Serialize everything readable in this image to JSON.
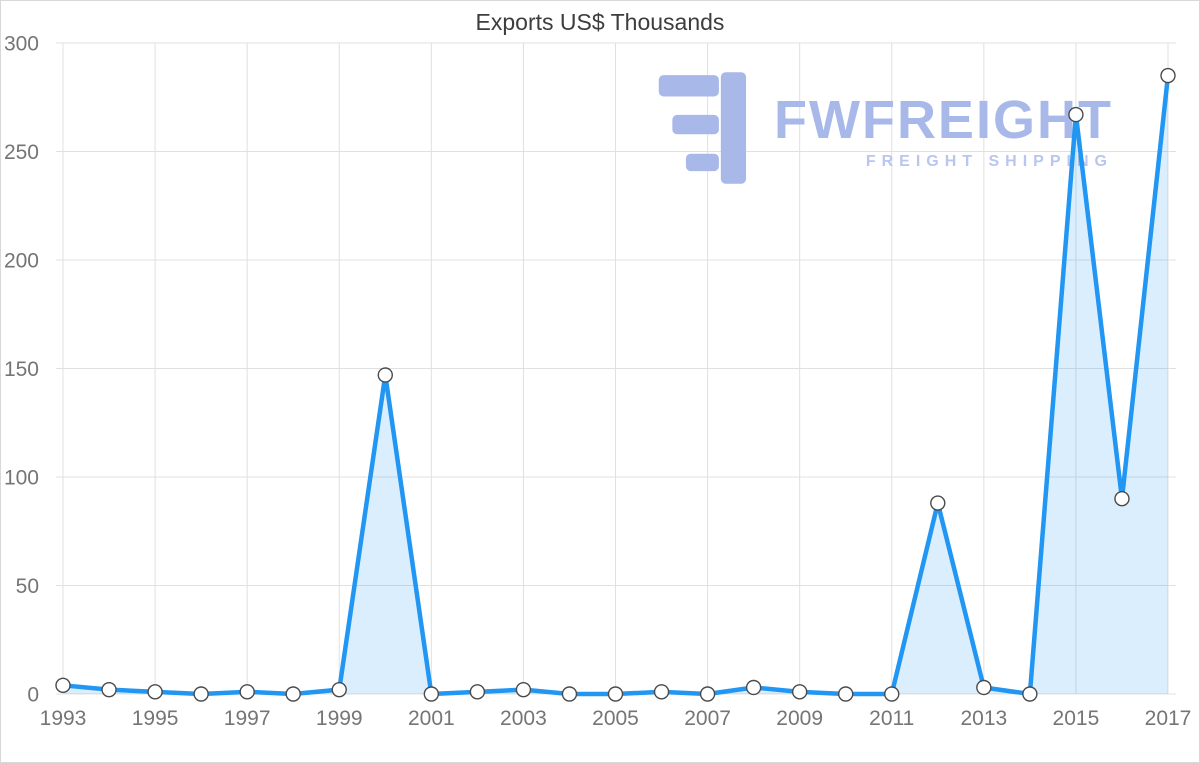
{
  "page": {
    "background": "#ffffff",
    "border_color": "#d8d8d8"
  },
  "chart": {
    "title": "Exports US$ Thousands",
    "title_color": "#3d3d3d",
    "axis_text_color": "#757575",
    "grid_color": "#e0e0e0",
    "tick_font_size": 21
  },
  "watermark": {
    "brand": "FWFREIGHT",
    "tagline": "FREIGHT SHIPPING",
    "color": "#a7b8e9",
    "tagline_color": "#bac5f0"
  },
  "chart_data": {
    "type": "area",
    "title": "Exports US$ Thousands",
    "x": [
      1993,
      1994,
      1995,
      1996,
      1997,
      1998,
      1999,
      2000,
      2001,
      2002,
      2003,
      2004,
      2005,
      2006,
      2007,
      2008,
      2009,
      2010,
      2011,
      2012,
      2013,
      2014,
      2015,
      2016,
      2017
    ],
    "values": [
      4,
      2,
      1,
      0,
      1,
      0,
      2,
      147,
      0,
      1,
      2,
      0,
      0,
      1,
      0,
      3,
      1,
      0,
      0,
      88,
      3,
      0,
      267,
      90,
      285
    ],
    "series_name": "Exports US$ Thousands",
    "xlabel": "",
    "ylabel": "",
    "ylim": [
      0,
      300
    ],
    "yticks": [
      0,
      50,
      100,
      150,
      200,
      250,
      300
    ],
    "xticks": [
      1993,
      1995,
      1997,
      1999,
      2001,
      2003,
      2005,
      2007,
      2009,
      2011,
      2013,
      2015,
      2017
    ],
    "grid": true,
    "legend": false,
    "line_color": "#2196f3",
    "line_width": 4.5,
    "fill_opacity": 0.16,
    "marker": {
      "shape": "circle",
      "radius": 7,
      "fill": "#ffffff",
      "stroke": "#4a4a4a",
      "stroke_width": 1.4
    }
  }
}
